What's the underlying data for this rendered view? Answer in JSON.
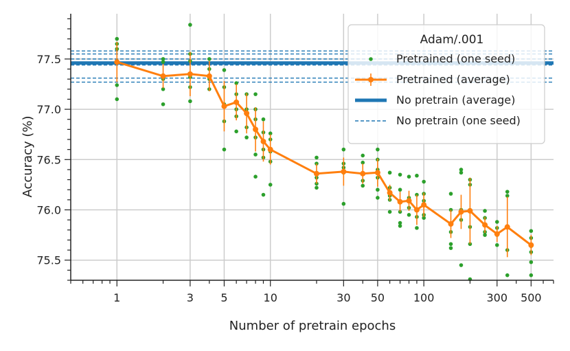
{
  "chart_data": {
    "type": "line",
    "title": "",
    "xlabel": "Number of pretrain epochs",
    "ylabel": "Accuracy (%)",
    "xscale": "log",
    "xlim": [
      0.5,
      700
    ],
    "ylim": [
      75.3,
      77.95
    ],
    "xticks": [
      1,
      3,
      5,
      10,
      30,
      50,
      100,
      300,
      500
    ],
    "yticks": [
      75.5,
      76.0,
      76.5,
      77.0,
      77.5
    ],
    "ytick_labels": [
      "75.5",
      "76.0",
      "76.5",
      "77.0",
      "77.5"
    ],
    "grid": true,
    "legend": {
      "title": "Adam/.001",
      "location": "top-right",
      "entries": [
        "Pretrained (one seed)",
        "Pretrained (average)",
        "No pretrain (average)",
        "No pretrain (one seed)"
      ]
    },
    "colors": {
      "pretrained_seed": "#2ca02c",
      "pretrained_avg": "#ff7f0e",
      "no_pretrain": "#1f77b4",
      "grid": "#cccccc"
    },
    "no_pretrain_average": 77.46,
    "no_pretrain_seeds": [
      77.58,
      77.55,
      77.5,
      77.47,
      77.44,
      77.31,
      77.27
    ],
    "pretrained_average": {
      "x": [
        1,
        2,
        3,
        4,
        5,
        6,
        7,
        8,
        9,
        10,
        20,
        30,
        40,
        50,
        60,
        70,
        80,
        90,
        100,
        150,
        175,
        200,
        250,
        300,
        350,
        500
      ],
      "y": [
        77.47,
        77.33,
        77.35,
        77.33,
        77.03,
        77.07,
        76.96,
        76.8,
        76.68,
        76.6,
        76.36,
        76.38,
        76.36,
        76.37,
        76.17,
        76.08,
        76.09,
        76.0,
        76.05,
        75.86,
        75.98,
        75.99,
        75.85,
        75.76,
        75.83,
        75.65
      ],
      "err": [
        0.2,
        0.12,
        0.22,
        0.15,
        0.25,
        0.18,
        0.2,
        0.22,
        0.2,
        0.15,
        0.1,
        0.14,
        0.1,
        0.14,
        0.08,
        0.1,
        0.1,
        0.15,
        0.12,
        0.14,
        0.17,
        0.33,
        0.08,
        0.08,
        0.3,
        0.1
      ]
    },
    "pretrained_seeds": [
      {
        "x": 1,
        "values": [
          77.7,
          77.65,
          77.6,
          77.48,
          77.24,
          77.1
        ]
      },
      {
        "x": 2,
        "values": [
          77.5,
          77.47,
          77.3,
          77.2,
          77.05
        ]
      },
      {
        "x": 3,
        "values": [
          77.84,
          77.55,
          77.48,
          77.32,
          77.22,
          77.08
        ]
      },
      {
        "x": 4,
        "values": [
          77.5,
          77.4,
          77.3,
          77.2
        ]
      },
      {
        "x": 5,
        "values": [
          77.39,
          77.22,
          77.05,
          76.88,
          76.6
        ]
      },
      {
        "x": 6,
        "values": [
          77.26,
          77.15,
          77.0,
          76.93,
          76.78
        ]
      },
      {
        "x": 7,
        "values": [
          77.15,
          77.0,
          76.95,
          76.82,
          76.72
        ]
      },
      {
        "x": 8,
        "values": [
          77.15,
          77.0,
          76.9,
          76.72,
          76.55,
          76.33
        ]
      },
      {
        "x": 9,
        "values": [
          76.9,
          76.77,
          76.6,
          76.52,
          76.15
        ]
      },
      {
        "x": 10,
        "values": [
          76.76,
          76.7,
          76.58,
          76.48,
          76.25
        ]
      },
      {
        "x": 20,
        "values": [
          76.52,
          76.46,
          76.32,
          76.26,
          76.22
        ]
      },
      {
        "x": 30,
        "values": [
          76.6,
          76.46,
          76.42,
          76.37,
          76.06
        ]
      },
      {
        "x": 40,
        "values": [
          76.54,
          76.47,
          76.36,
          76.29,
          76.24
        ]
      },
      {
        "x": 50,
        "values": [
          76.6,
          76.5,
          76.4,
          76.32,
          76.2,
          76.12
        ]
      },
      {
        "x": 60,
        "values": [
          76.37,
          76.22,
          76.14,
          76.1,
          75.98
        ]
      },
      {
        "x": 70,
        "values": [
          76.35,
          76.2,
          76.08,
          75.98,
          75.87,
          75.84
        ]
      },
      {
        "x": 80,
        "values": [
          76.33,
          76.12,
          76.02,
          75.95
        ]
      },
      {
        "x": 90,
        "values": [
          76.34,
          76.15,
          76.0,
          75.93,
          75.82
        ]
      },
      {
        "x": 100,
        "values": [
          76.28,
          76.16,
          76.09,
          75.95,
          75.92
        ]
      },
      {
        "x": 150,
        "values": [
          76.16,
          76.0,
          75.86,
          75.78,
          75.66,
          75.62
        ]
      },
      {
        "x": 175,
        "values": [
          76.4,
          76.37,
          76.0,
          75.9,
          75.45
        ]
      },
      {
        "x": 200,
        "values": [
          76.3,
          76.25,
          76.0,
          75.83,
          75.66,
          75.31
        ]
      },
      {
        "x": 250,
        "values": [
          75.99,
          75.92,
          75.85,
          75.78,
          75.75
        ]
      },
      {
        "x": 300,
        "values": [
          75.88,
          75.82,
          75.75,
          75.65
        ]
      },
      {
        "x": 350,
        "values": [
          76.18,
          76.14,
          75.83,
          75.6,
          75.35
        ]
      },
      {
        "x": 500,
        "values": [
          75.79,
          75.72,
          75.64,
          75.58,
          75.48,
          75.35
        ]
      }
    ]
  }
}
